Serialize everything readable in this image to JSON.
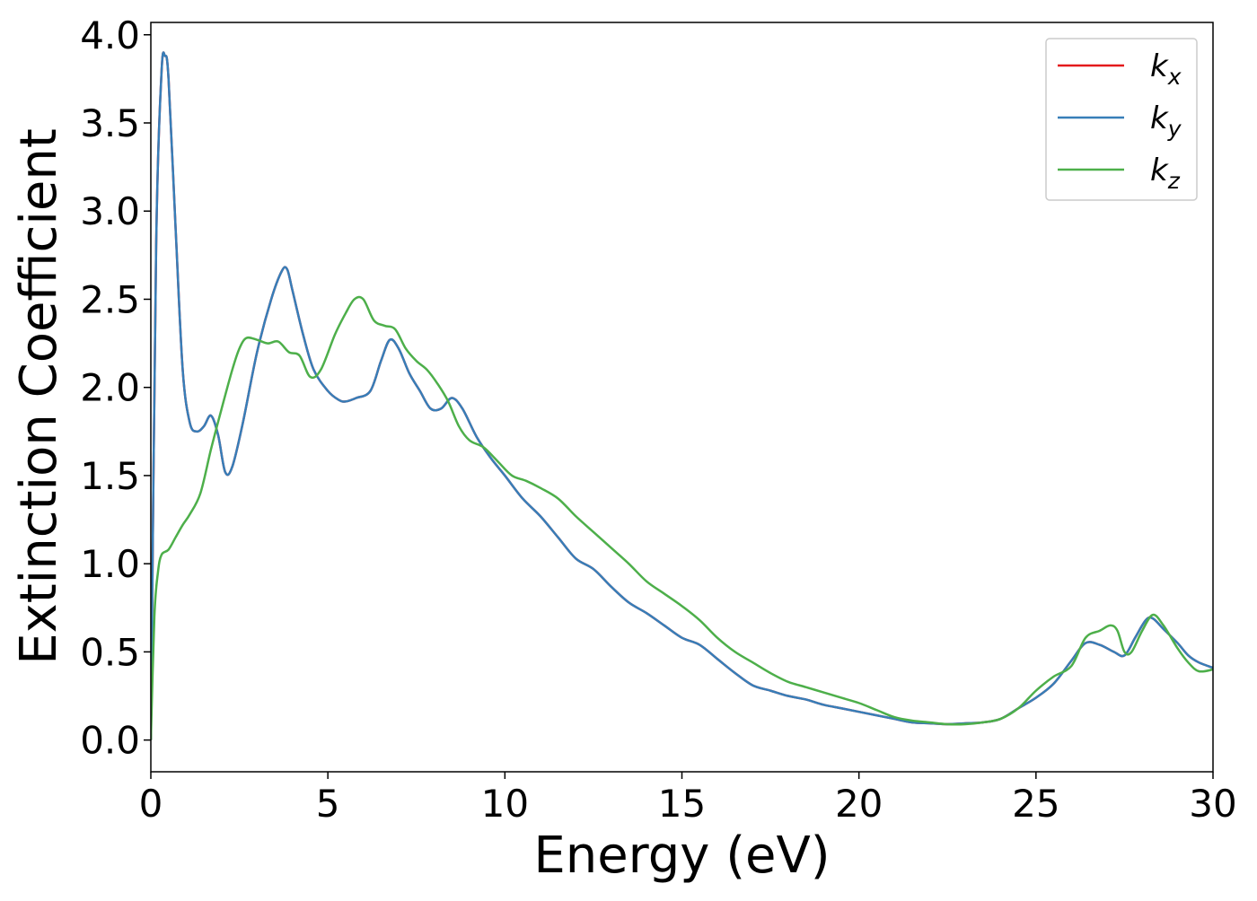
{
  "chart_data": {
    "type": "line",
    "title": "",
    "xlabel": "Energy (eV)",
    "ylabel": "Extinction Coefficient",
    "xlim": [
      0,
      30
    ],
    "ylim": [
      -0.18,
      4.07
    ],
    "xticks": [
      0,
      5,
      10,
      15,
      20,
      25,
      30
    ],
    "xtick_labels": [
      "0",
      "5",
      "10",
      "15",
      "20",
      "25",
      "30"
    ],
    "yticks": [
      0.0,
      0.5,
      1.0,
      1.5,
      2.0,
      2.5,
      3.0,
      3.5,
      4.0
    ],
    "ytick_labels": [
      "0.0",
      "0.5",
      "1.0",
      "1.5",
      "2.0",
      "2.5",
      "3.0",
      "3.5",
      "4.0"
    ],
    "grid": false,
    "legend_position": "top-right",
    "series": [
      {
        "name": "kx",
        "label_base": "k",
        "label_sub": "x",
        "color": "#e41a1c",
        "x": [
          0,
          0.15,
          0.3,
          0.4,
          0.5,
          0.7,
          0.9,
          1.1,
          1.3,
          1.5,
          1.7,
          1.9,
          2.1,
          2.3,
          2.6,
          3.0,
          3.4,
          3.7,
          3.85,
          4.0,
          4.3,
          4.6,
          5.0,
          5.3,
          5.5,
          5.8,
          6.2,
          6.5,
          6.75,
          7.0,
          7.3,
          7.6,
          7.9,
          8.2,
          8.5,
          8.8,
          9.2,
          9.6,
          10.0,
          10.5,
          11.0,
          11.5,
          12.0,
          12.5,
          13.0,
          13.5,
          14.0,
          14.5,
          15.0,
          15.5,
          16.0,
          16.5,
          17.0,
          17.5,
          18.0,
          18.5,
          19.0,
          19.5,
          20.0,
          20.5,
          21.0,
          21.5,
          22.0,
          22.5,
          23.0,
          23.5,
          24.0,
          24.5,
          25.0,
          25.5,
          26.0,
          26.4,
          26.8,
          27.2,
          27.5,
          27.8,
          28.1,
          28.3,
          28.6,
          29.0,
          29.3,
          29.6,
          30.0
        ],
        "values": [
          0.0,
          2.8,
          3.78,
          3.88,
          3.75,
          2.9,
          2.1,
          1.8,
          1.75,
          1.78,
          1.84,
          1.73,
          1.52,
          1.55,
          1.8,
          2.2,
          2.5,
          2.66,
          2.67,
          2.55,
          2.3,
          2.1,
          1.98,
          1.93,
          1.92,
          1.94,
          1.98,
          2.15,
          2.27,
          2.22,
          2.08,
          1.98,
          1.88,
          1.88,
          1.94,
          1.88,
          1.72,
          1.6,
          1.5,
          1.37,
          1.27,
          1.15,
          1.03,
          0.97,
          0.87,
          0.78,
          0.72,
          0.65,
          0.58,
          0.54,
          0.46,
          0.38,
          0.31,
          0.28,
          0.25,
          0.23,
          0.2,
          0.18,
          0.16,
          0.14,
          0.12,
          0.1,
          0.095,
          0.09,
          0.095,
          0.1,
          0.12,
          0.18,
          0.24,
          0.32,
          0.45,
          0.55,
          0.54,
          0.5,
          0.48,
          0.58,
          0.68,
          0.69,
          0.63,
          0.55,
          0.48,
          0.44,
          0.41
        ]
      },
      {
        "name": "ky",
        "label_base": "k",
        "label_sub": "y",
        "color": "#377eb8",
        "x": [
          0,
          0.15,
          0.3,
          0.4,
          0.5,
          0.7,
          0.9,
          1.1,
          1.3,
          1.5,
          1.7,
          1.9,
          2.1,
          2.3,
          2.6,
          3.0,
          3.4,
          3.7,
          3.85,
          4.0,
          4.3,
          4.6,
          5.0,
          5.3,
          5.5,
          5.8,
          6.2,
          6.5,
          6.75,
          7.0,
          7.3,
          7.6,
          7.9,
          8.2,
          8.5,
          8.8,
          9.2,
          9.6,
          10.0,
          10.5,
          11.0,
          11.5,
          12.0,
          12.5,
          13.0,
          13.5,
          14.0,
          14.5,
          15.0,
          15.5,
          16.0,
          16.5,
          17.0,
          17.5,
          18.0,
          18.5,
          19.0,
          19.5,
          20.0,
          20.5,
          21.0,
          21.5,
          22.0,
          22.5,
          23.0,
          23.5,
          24.0,
          24.5,
          25.0,
          25.5,
          26.0,
          26.4,
          26.8,
          27.2,
          27.5,
          27.8,
          28.1,
          28.3,
          28.6,
          29.0,
          29.3,
          29.6,
          30.0
        ],
        "values": [
          0.0,
          2.8,
          3.78,
          3.88,
          3.75,
          2.9,
          2.1,
          1.8,
          1.75,
          1.78,
          1.84,
          1.73,
          1.52,
          1.55,
          1.8,
          2.2,
          2.5,
          2.66,
          2.67,
          2.55,
          2.3,
          2.1,
          1.98,
          1.93,
          1.92,
          1.94,
          1.98,
          2.15,
          2.27,
          2.22,
          2.08,
          1.98,
          1.88,
          1.88,
          1.94,
          1.88,
          1.72,
          1.6,
          1.5,
          1.37,
          1.27,
          1.15,
          1.03,
          0.97,
          0.87,
          0.78,
          0.72,
          0.65,
          0.58,
          0.54,
          0.46,
          0.38,
          0.31,
          0.28,
          0.25,
          0.23,
          0.2,
          0.18,
          0.16,
          0.14,
          0.12,
          0.1,
          0.095,
          0.09,
          0.095,
          0.1,
          0.12,
          0.18,
          0.24,
          0.32,
          0.45,
          0.55,
          0.54,
          0.5,
          0.48,
          0.58,
          0.68,
          0.69,
          0.63,
          0.55,
          0.48,
          0.44,
          0.41
        ]
      },
      {
        "name": "kz",
        "label_base": "k",
        "label_sub": "z",
        "color": "#4daf4a",
        "x": [
          0,
          0.1,
          0.2,
          0.3,
          0.5,
          0.7,
          0.9,
          1.1,
          1.4,
          1.7,
          2.0,
          2.3,
          2.5,
          2.7,
          3.0,
          3.3,
          3.6,
          3.9,
          4.2,
          4.5,
          4.8,
          5.2,
          5.5,
          5.75,
          6.0,
          6.3,
          6.6,
          6.9,
          7.2,
          7.5,
          7.8,
          8.1,
          8.4,
          8.7,
          9.0,
          9.4,
          9.8,
          10.2,
          10.6,
          11.0,
          11.5,
          12.0,
          12.5,
          13.0,
          13.5,
          14.0,
          14.5,
          15.0,
          15.5,
          16.0,
          16.5,
          17.0,
          17.5,
          18.0,
          18.5,
          19.0,
          19.5,
          20.0,
          20.5,
          21.0,
          21.5,
          22.0,
          22.5,
          23.0,
          23.5,
          24.0,
          24.5,
          25.0,
          25.5,
          26.0,
          26.4,
          26.8,
          27.1,
          27.3,
          27.5,
          27.7,
          28.0,
          28.3,
          28.6,
          29.0,
          29.3,
          29.6,
          30.0
        ],
        "values": [
          0.0,
          0.7,
          0.95,
          1.05,
          1.08,
          1.15,
          1.22,
          1.28,
          1.4,
          1.65,
          1.88,
          2.1,
          2.22,
          2.28,
          2.27,
          2.25,
          2.26,
          2.2,
          2.18,
          2.06,
          2.1,
          2.3,
          2.42,
          2.5,
          2.5,
          2.38,
          2.35,
          2.33,
          2.22,
          2.15,
          2.1,
          2.02,
          1.92,
          1.78,
          1.7,
          1.66,
          1.58,
          1.5,
          1.47,
          1.43,
          1.37,
          1.27,
          1.18,
          1.09,
          1.0,
          0.9,
          0.83,
          0.76,
          0.68,
          0.58,
          0.5,
          0.44,
          0.38,
          0.33,
          0.3,
          0.27,
          0.24,
          0.21,
          0.17,
          0.13,
          0.11,
          0.1,
          0.09,
          0.09,
          0.1,
          0.12,
          0.18,
          0.28,
          0.36,
          0.42,
          0.58,
          0.62,
          0.65,
          0.62,
          0.5,
          0.5,
          0.62,
          0.71,
          0.65,
          0.52,
          0.44,
          0.39,
          0.4
        ]
      }
    ]
  }
}
